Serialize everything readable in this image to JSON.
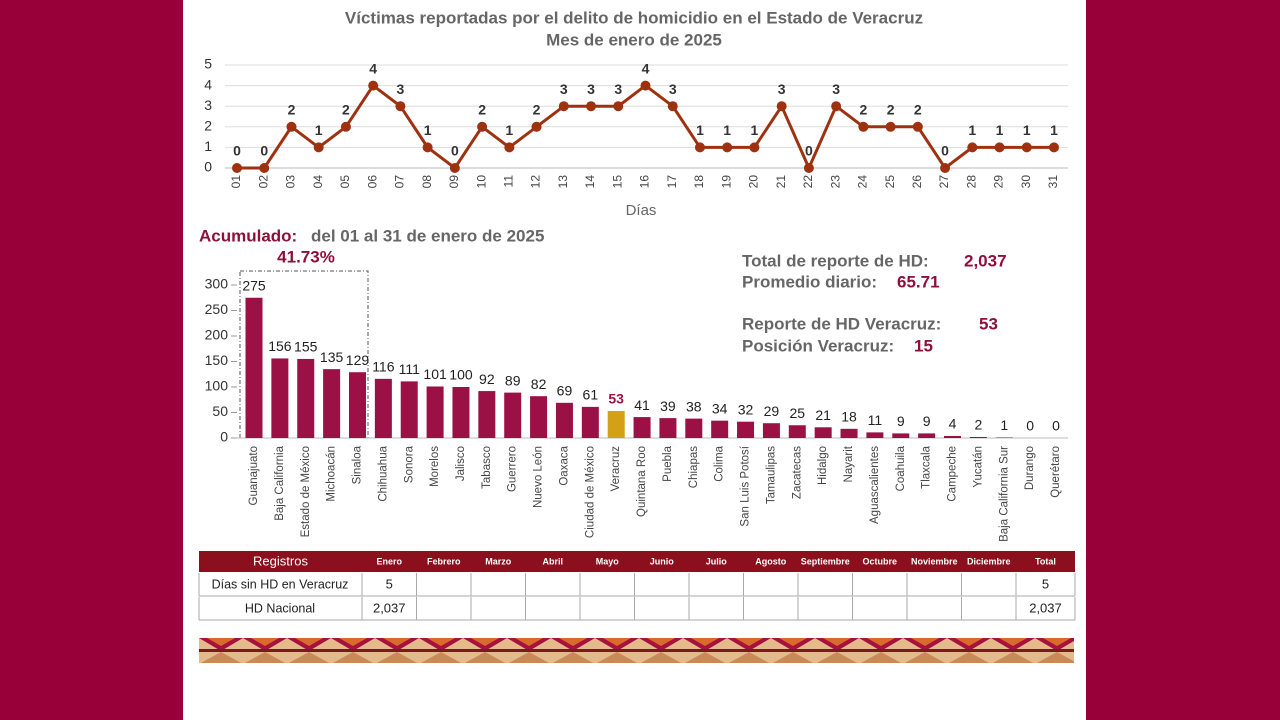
{
  "chart_data": [
    {
      "type": "line",
      "title": "Víctimas reportadas por el delito de homicidio en el Estado de Veracruz",
      "subtitle": "Mes de enero de 2025",
      "x_label": "Días",
      "categories": [
        "01",
        "02",
        "03",
        "04",
        "05",
        "06",
        "07",
        "08",
        "09",
        "10",
        "11",
        "12",
        "13",
        "14",
        "15",
        "16",
        "17",
        "18",
        "19",
        "20",
        "21",
        "22",
        "23",
        "24",
        "25",
        "26",
        "27",
        "28",
        "29",
        "30",
        "31"
      ],
      "values": [
        0,
        0,
        2,
        1,
        2,
        4,
        3,
        1,
        0,
        2,
        1,
        2,
        3,
        3,
        3,
        4,
        3,
        1,
        1,
        1,
        3,
        0,
        3,
        2,
        2,
        2,
        0,
        1,
        1,
        1,
        1
      ],
      "color": "#9e3210",
      "ylim": [
        0,
        5
      ],
      "yticks": [
        0,
        1,
        2,
        3,
        4,
        5
      ],
      "grid": true
    },
    {
      "type": "bar",
      "categories": [
        "Guanajuato",
        "Baja California",
        "Estado de México",
        "Michoacán",
        "Sinaloa",
        "Chihuahua",
        "Sonora",
        "Morelos",
        "Jalisco",
        "Tabasco",
        "Guerrero",
        "Nuevo León",
        "Oaxaca",
        "Ciudad de México",
        "Veracruz",
        "Quintana Roo",
        "Puebla",
        "Chiapas",
        "Colima",
        "San Luis Potosí",
        "Tamaulipas",
        "Zacatecas",
        "Hidalgo",
        "Nayarit",
        "Aguascalientes",
        "Coahuila",
        "Tlaxcala",
        "Campeche",
        "Yucatán",
        "Baja California Sur",
        "Durango",
        "Querétaro"
      ],
      "values": [
        275,
        156,
        155,
        135,
        129,
        116,
        111,
        101,
        100,
        92,
        89,
        82,
        69,
        61,
        53,
        41,
        39,
        38,
        34,
        32,
        29,
        25,
        21,
        18,
        11,
        9,
        9,
        4,
        2,
        1,
        0,
        0
      ],
      "color": "#9b1045",
      "highlight": "Veracruz",
      "highlight_color": "#d4a017",
      "ylim": [
        0,
        300
      ],
      "yticks": [
        0,
        50,
        100,
        150,
        200,
        250,
        300
      ],
      "grid": false
    }
  ],
  "accumulated": {
    "label": "Acumulado:",
    "period": "del 01 al 31 de enero de 2025",
    "top_share": "41.73%"
  },
  "summary": [
    {
      "label": "Total de reporte de HD:",
      "value": "2,037"
    },
    {
      "label": "Promedio diario:",
      "value": "65.71"
    },
    {
      "label": "Reporte de HD Veracruz:",
      "value": "53"
    },
    {
      "label": "Posición Veracruz:",
      "value": "15"
    }
  ],
  "table": {
    "header": [
      "Registros",
      "Enero",
      "Febrero",
      "Marzo",
      "Abril",
      "Mayo",
      "Junio",
      "Julio",
      "Agosto",
      "Septiembre",
      "Octubre",
      "Noviembre",
      "Diciembre",
      "Total"
    ],
    "rows": [
      {
        "label": "Días sin HD en Veracruz",
        "cells": [
          "5"
        ],
        "total": "5"
      },
      {
        "label": "HD Nacional",
        "cells": [
          "2,037"
        ],
        "total": "2,037"
      }
    ]
  }
}
